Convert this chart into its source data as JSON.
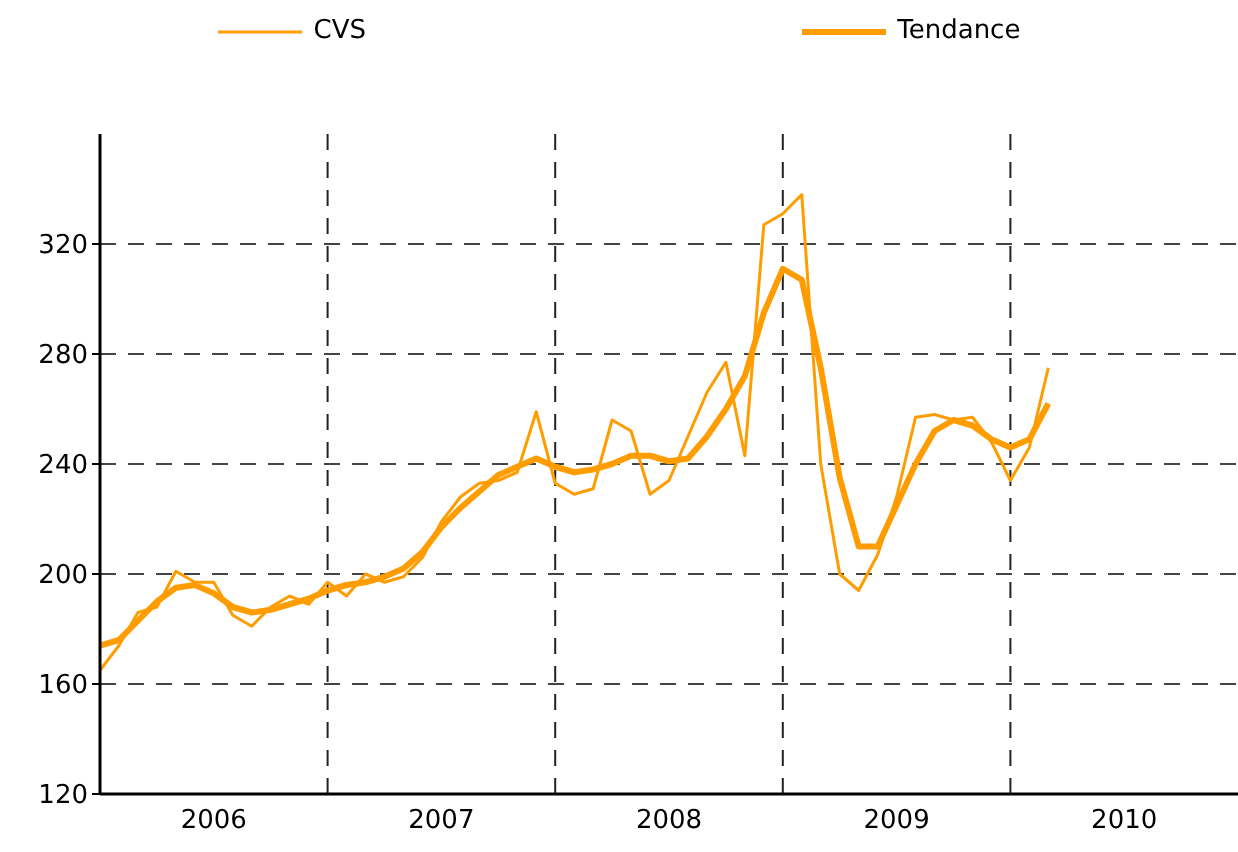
{
  "chart_data": {
    "type": "line",
    "x": [
      "2006-01",
      "2006-02",
      "2006-03",
      "2006-04",
      "2006-05",
      "2006-06",
      "2006-07",
      "2006-08",
      "2006-09",
      "2006-10",
      "2006-11",
      "2006-12",
      "2007-01",
      "2007-02",
      "2007-03",
      "2007-04",
      "2007-05",
      "2007-06",
      "2007-07",
      "2007-08",
      "2007-09",
      "2007-10",
      "2007-11",
      "2007-12",
      "2008-01",
      "2008-02",
      "2008-03",
      "2008-04",
      "2008-05",
      "2008-06",
      "2008-07",
      "2008-08",
      "2008-09",
      "2008-10",
      "2008-11",
      "2008-12",
      "2009-01",
      "2009-02",
      "2009-03",
      "2009-04",
      "2009-05",
      "2009-06",
      "2009-07",
      "2009-08",
      "2009-09",
      "2009-10",
      "2009-11",
      "2009-12",
      "2010-01",
      "2010-02",
      "2010-03"
    ],
    "series": [
      {
        "name": "CVS",
        "color": "#ff9c00",
        "values": [
          165,
          174,
          186,
          188,
          201,
          197,
          197,
          185,
          181,
          188,
          192,
          189,
          197,
          192,
          200,
          197,
          199,
          206,
          219,
          228,
          233,
          234,
          237,
          259,
          233,
          229,
          231,
          256,
          252,
          229,
          234,
          250,
          266,
          277,
          243,
          327,
          331,
          338,
          240,
          200,
          194,
          207,
          228,
          257,
          258,
          256,
          257,
          248,
          234,
          246,
          275
        ]
      },
      {
        "name": "Tendance",
        "color": "#ff9c00",
        "values": [
          174,
          176,
          183,
          190,
          195,
          196,
          193,
          188,
          186,
          187,
          189,
          191,
          194,
          196,
          197,
          199,
          202,
          208,
          217,
          224,
          230,
          236,
          239,
          242,
          239,
          237,
          238,
          240,
          243,
          243,
          241,
          242,
          250,
          260,
          272,
          295,
          311,
          307,
          275,
          235,
          210,
          210,
          225,
          240,
          252,
          256,
          254,
          249,
          246,
          249,
          262
        ]
      }
    ],
    "xlim": [
      "2006-01",
      "2011-01"
    ],
    "xticks": [
      {
        "value": "2006-07",
        "label": "2006"
      },
      {
        "value": "2007-01",
        "label": null
      },
      {
        "value": "2007-07",
        "label": "2007"
      },
      {
        "value": "2008-01",
        "label": null
      },
      {
        "value": "2008-07",
        "label": "2008"
      },
      {
        "value": "2009-01",
        "label": null
      },
      {
        "value": "2009-07",
        "label": "2009"
      },
      {
        "value": "2010-01",
        "label": null
      },
      {
        "value": "2010-07",
        "label": "2010"
      }
    ],
    "ylim": [
      120,
      360
    ],
    "yticks": [
      120,
      160,
      200,
      240,
      280,
      320
    ],
    "grid": true,
    "legend": "top",
    "marker": "none",
    "line_style": "solid"
  }
}
